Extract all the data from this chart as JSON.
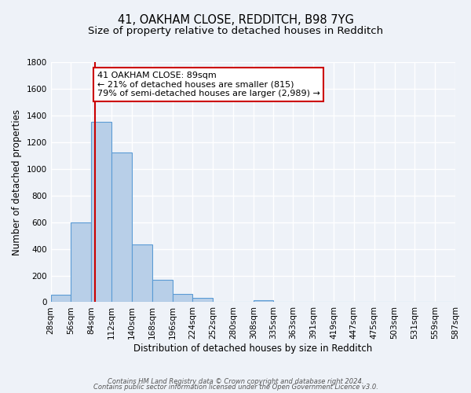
{
  "title": "41, OAKHAM CLOSE, REDDITCH, B98 7YG",
  "subtitle": "Size of property relative to detached houses in Redditch",
  "xlabel": "Distribution of detached houses by size in Redditch",
  "ylabel": "Number of detached properties",
  "bin_edges": [
    28,
    56,
    84,
    112,
    140,
    168,
    196,
    224,
    252,
    280,
    308,
    335,
    363,
    391,
    419,
    447,
    475,
    503,
    531,
    559,
    587
  ],
  "bin_heights": [
    55,
    600,
    1350,
    1120,
    430,
    170,
    60,
    30,
    0,
    0,
    15,
    0,
    0,
    0,
    0,
    0,
    0,
    0,
    0,
    0
  ],
  "bar_color": "#b8cfe8",
  "bar_edge_color": "#5b9bd5",
  "property_value": 89,
  "vline_color": "#cc0000",
  "annotation_text": "41 OAKHAM CLOSE: 89sqm\n← 21% of detached houses are smaller (815)\n79% of semi-detached houses are larger (2,989) →",
  "annotation_box_edgecolor": "#cc0000",
  "annotation_box_facecolor": "#ffffff",
  "ylim": [
    0,
    1800
  ],
  "yticks": [
    0,
    200,
    400,
    600,
    800,
    1000,
    1200,
    1400,
    1600,
    1800
  ],
  "tick_labels": [
    "28sqm",
    "56sqm",
    "84sqm",
    "112sqm",
    "140sqm",
    "168sqm",
    "196sqm",
    "224sqm",
    "252sqm",
    "280sqm",
    "308sqm",
    "335sqm",
    "363sqm",
    "391sqm",
    "419sqm",
    "447sqm",
    "475sqm",
    "503sqm",
    "531sqm",
    "559sqm",
    "587sqm"
  ],
  "footnote1": "Contains HM Land Registry data © Crown copyright and database right 2024.",
  "footnote2": "Contains public sector information licensed under the Open Government Licence v3.0.",
  "bg_color": "#eef2f8",
  "grid_color": "#ffffff",
  "title_fontsize": 10.5,
  "subtitle_fontsize": 9.5,
  "axis_label_fontsize": 8.5,
  "tick_fontsize": 7.5,
  "footnote_fontsize": 6.0
}
